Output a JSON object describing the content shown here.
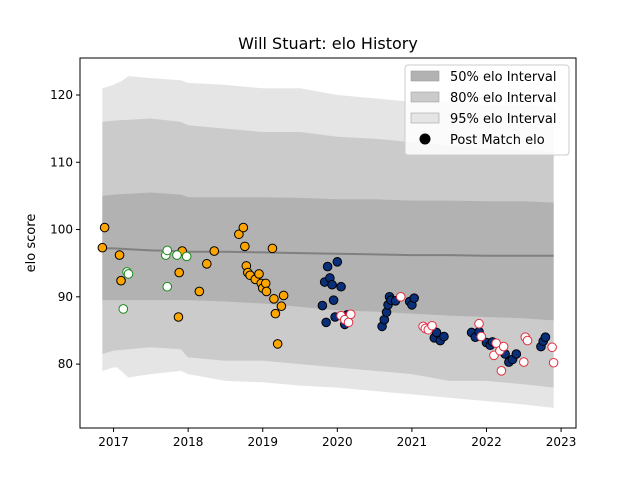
{
  "chart_data": {
    "type": "scatter",
    "title": "Will Stuart: elo History",
    "xlabel": "",
    "ylabel": "elo score",
    "xlim": [
      2016.55,
      2023.2
    ],
    "ylim": [
      70.5,
      125.5
    ],
    "x_ticks": [
      2017,
      2018,
      2019,
      2020,
      2021,
      2022,
      2023
    ],
    "y_ticks": [
      80,
      90,
      100,
      110,
      120
    ],
    "grid": false,
    "legend_position": "upper right",
    "legend": [
      {
        "label": "50% elo Interval",
        "kind": "band",
        "color": "#b2b2b2"
      },
      {
        "label": "80% elo Interval",
        "kind": "band",
        "color": "#cbcbcb"
      },
      {
        "label": "95% elo Interval",
        "kind": "band",
        "color": "#e5e5e5"
      },
      {
        "label": "Post Match elo",
        "kind": "marker",
        "color": "#000000"
      }
    ],
    "bands": [
      {
        "name": "95% elo Interval",
        "color": "#e5e5e5",
        "x": [
          2016.85,
          2017.0,
          2017.05,
          2017.1,
          2017.2,
          2017.5,
          2017.9,
          2018.0,
          2018.5,
          2019.0,
          2019.5,
          2020.0,
          2020.5,
          2021.0,
          2021.5,
          2022.0,
          2022.5,
          2022.9
        ],
        "upper": [
          121.0,
          121.5,
          121.8,
          122.0,
          122.8,
          122.5,
          122.2,
          121.8,
          121.5,
          121.0,
          121.0,
          120.0,
          119.5,
          119.0,
          119.0,
          118.5,
          118.5,
          118.3
        ],
        "lower": [
          79.0,
          79.5,
          79.5,
          79.0,
          78.0,
          78.5,
          79.0,
          78.5,
          77.5,
          77.3,
          76.8,
          76.5,
          76.0,
          75.5,
          75.0,
          74.5,
          74.0,
          73.5
        ]
      },
      {
        "name": "80% elo Interval",
        "color": "#cbcbcb",
        "x": [
          2016.85,
          2017.0,
          2017.5,
          2017.9,
          2018.0,
          2018.5,
          2019.0,
          2019.5,
          2020.0,
          2020.5,
          2021.0,
          2021.5,
          2022.0,
          2022.5,
          2022.9
        ],
        "upper": [
          116.0,
          116.2,
          116.5,
          116.0,
          115.5,
          115.0,
          114.5,
          114.5,
          113.8,
          113.5,
          113.0,
          112.5,
          112.0,
          111.8,
          111.5
        ],
        "lower": [
          81.5,
          82.0,
          82.5,
          82.2,
          81.0,
          80.5,
          80.5,
          80.0,
          79.5,
          79.0,
          78.5,
          77.5,
          77.5,
          77.0,
          76.5
        ]
      },
      {
        "name": "50% elo Interval",
        "color": "#b2b2b2",
        "x": [
          2016.85,
          2017.0,
          2017.5,
          2017.9,
          2018.0,
          2018.5,
          2019.0,
          2019.5,
          2020.0,
          2020.5,
          2021.0,
          2021.5,
          2022.0,
          2022.5,
          2022.9
        ],
        "upper": [
          105.0,
          105.2,
          105.5,
          105.2,
          104.8,
          104.8,
          104.8,
          104.7,
          104.5,
          104.5,
          104.3,
          104.3,
          104.2,
          104.2,
          104.0
        ],
        "lower": [
          89.5,
          89.5,
          89.5,
          89.5,
          89.5,
          89.3,
          89.0,
          88.5,
          88.0,
          87.8,
          87.5,
          87.2,
          87.0,
          86.8,
          86.5
        ]
      }
    ],
    "series": [
      {
        "kind": "line",
        "color": "#808080",
        "x": [
          2016.85,
          2017.0,
          2017.5,
          2017.9,
          2018.0,
          2018.5,
          2019.0,
          2019.5,
          2020.0,
          2020.5,
          2021.0,
          2021.5,
          2022.0,
          2022.5,
          2022.9
        ],
        "values": [
          97.2,
          97.2,
          96.9,
          96.8,
          96.7,
          96.7,
          96.6,
          96.5,
          96.4,
          96.3,
          96.2,
          96.2,
          96.1,
          96.1,
          96.1
        ]
      },
      {
        "kind": "markers",
        "fill": "#ffa500",
        "edge": "#000000",
        "points": [
          [
            2016.85,
            97.3
          ],
          [
            2016.88,
            100.3
          ],
          [
            2017.08,
            96.2
          ],
          [
            2017.1,
            92.4
          ],
          [
            2017.87,
            87.0
          ],
          [
            2017.88,
            93.6
          ],
          [
            2017.92,
            96.8
          ],
          [
            2018.15,
            90.8
          ],
          [
            2018.25,
            94.9
          ],
          [
            2018.35,
            96.8
          ],
          [
            2018.68,
            99.3
          ],
          [
            2018.74,
            100.3
          ],
          [
            2018.76,
            97.5
          ],
          [
            2018.78,
            94.6
          ],
          [
            2018.8,
            93.6
          ],
          [
            2018.83,
            93.2
          ],
          [
            2018.9,
            92.6
          ],
          [
            2018.95,
            93.4
          ],
          [
            2018.98,
            92.0
          ],
          [
            2019.0,
            91.3
          ],
          [
            2019.04,
            92.0
          ],
          [
            2019.05,
            90.8
          ],
          [
            2019.13,
            97.2
          ],
          [
            2019.15,
            89.7
          ],
          [
            2019.17,
            87.5
          ],
          [
            2019.2,
            83.0
          ],
          [
            2019.25,
            88.6
          ],
          [
            2019.28,
            90.2
          ]
        ]
      },
      {
        "kind": "markers",
        "fill": "#ffffff",
        "edge": "#1a8a1a",
        "points": [
          [
            2017.13,
            88.2
          ],
          [
            2017.18,
            93.7
          ],
          [
            2017.2,
            93.4
          ],
          [
            2017.7,
            96.2
          ],
          [
            2017.72,
            96.9
          ],
          [
            2017.72,
            91.5
          ],
          [
            2017.85,
            96.2
          ],
          [
            2017.98,
            96.0
          ]
        ]
      },
      {
        "kind": "markers",
        "fill": "#0a2f7a",
        "edge": "#000000",
        "points": [
          [
            2019.8,
            88.7
          ],
          [
            2019.83,
            92.2
          ],
          [
            2019.85,
            86.2
          ],
          [
            2019.87,
            94.5
          ],
          [
            2019.9,
            92.8
          ],
          [
            2019.93,
            91.8
          ],
          [
            2019.95,
            89.5
          ],
          [
            2019.97,
            87.0
          ],
          [
            2020.0,
            95.2
          ],
          [
            2020.05,
            91.5
          ],
          [
            2020.1,
            85.9
          ],
          [
            2020.13,
            87.3
          ],
          [
            2020.6,
            85.6
          ],
          [
            2020.63,
            86.6
          ],
          [
            2020.66,
            87.7
          ],
          [
            2020.68,
            88.8
          ],
          [
            2020.7,
            90.0
          ],
          [
            2020.72,
            89.5
          ],
          [
            2020.78,
            89.4
          ],
          [
            2020.97,
            89.3
          ],
          [
            2021.0,
            88.8
          ],
          [
            2021.03,
            89.8
          ],
          [
            2021.3,
            83.9
          ],
          [
            2021.33,
            84.7
          ],
          [
            2021.38,
            83.5
          ],
          [
            2021.43,
            84.1
          ],
          [
            2021.8,
            84.7
          ],
          [
            2021.85,
            84.0
          ],
          [
            2021.9,
            84.8
          ],
          [
            2022.0,
            83.2
          ],
          [
            2022.05,
            82.8
          ],
          [
            2022.08,
            83.3
          ],
          [
            2022.25,
            81.5
          ],
          [
            2022.3,
            80.3
          ],
          [
            2022.35,
            80.7
          ],
          [
            2022.4,
            81.5
          ],
          [
            2022.73,
            82.6
          ],
          [
            2022.76,
            83.4
          ],
          [
            2022.79,
            84.0
          ]
        ]
      },
      {
        "kind": "markers",
        "fill": "#ffffff",
        "edge": "#e03040",
        "points": [
          [
            2020.05,
            87.2
          ],
          [
            2020.1,
            86.6
          ],
          [
            2020.15,
            86.2
          ],
          [
            2020.18,
            87.4
          ],
          [
            2020.85,
            90.0
          ],
          [
            2021.15,
            85.6
          ],
          [
            2021.18,
            85.3
          ],
          [
            2021.22,
            85.1
          ],
          [
            2021.27,
            85.7
          ],
          [
            2021.9,
            86.0
          ],
          [
            2021.93,
            84.1
          ],
          [
            2022.1,
            81.3
          ],
          [
            2022.13,
            83.1
          ],
          [
            2022.18,
            82.0
          ],
          [
            2022.2,
            79.0
          ],
          [
            2022.23,
            82.6
          ],
          [
            2022.5,
            80.3
          ],
          [
            2022.52,
            84.0
          ],
          [
            2022.55,
            83.5
          ],
          [
            2022.88,
            82.5
          ],
          [
            2022.9,
            80.2
          ]
        ]
      }
    ]
  }
}
